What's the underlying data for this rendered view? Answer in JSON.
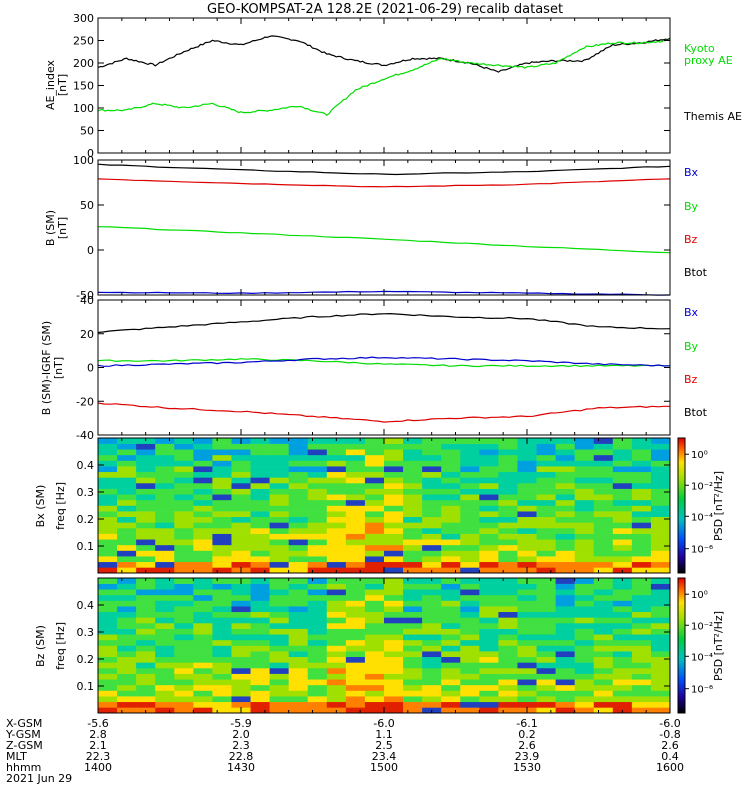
{
  "title": "GEO-KOMPSAT-2A 128.2E (2021-06-29) recalib dataset",
  "colors": {
    "black": "#000000",
    "green": "#00dd00",
    "red": "#dd0000",
    "blue": "#0000cc"
  },
  "chart_data": [
    {
      "type": "line",
      "ylabel": [
        "AE_index",
        "[nT]"
      ],
      "ylim": [
        0,
        300
      ],
      "yticks": [
        "0",
        "50",
        "100",
        "150",
        "200",
        "250",
        "300"
      ],
      "x": [
        1400,
        1406,
        1412,
        1418,
        1424,
        1430,
        1436,
        1442,
        1448,
        1454,
        1500,
        1506,
        1512,
        1518,
        1524,
        1530,
        1536,
        1542,
        1548,
        1554,
        1600
      ],
      "series": [
        {
          "name": "Themis AE",
          "color": "#000000",
          "values": [
            190,
            210,
            195,
            225,
            250,
            240,
            260,
            250,
            220,
            205,
            195,
            210,
            210,
            200,
            180,
            200,
            205,
            205,
            240,
            245,
            255
          ]
        },
        {
          "name": "Kyoto proxy AE",
          "color": "#00dd00",
          "values": [
            95,
            95,
            110,
            100,
            110,
            90,
            95,
            105,
            85,
            140,
            165,
            185,
            210,
            200,
            195,
            190,
            200,
            235,
            245,
            245,
            250
          ]
        }
      ],
      "legend": [
        {
          "text": "Kyoto",
          "color": "#00dd00"
        },
        {
          "text": "proxy AE",
          "color": "#00dd00"
        },
        {
          "text": "Themis AE",
          "color": "#000000"
        }
      ]
    },
    {
      "type": "line",
      "ylabel": [
        "B (SM)",
        "[nT]"
      ],
      "ylim": [
        -50,
        100
      ],
      "yticks": [
        "-50",
        "0",
        "50",
        "100"
      ],
      "x": [
        1400,
        1430,
        1500,
        1530,
        1600
      ],
      "series": [
        {
          "name": "Btot",
          "color": "#000000",
          "values": [
            95,
            89,
            84,
            87,
            93
          ]
        },
        {
          "name": "Bz",
          "color": "#dd0000",
          "values": [
            79,
            74,
            70,
            73,
            79
          ]
        },
        {
          "name": "By",
          "color": "#00dd00",
          "values": [
            26,
            19,
            12,
            4,
            -3
          ]
        },
        {
          "name": "Bx",
          "color": "#0000cc",
          "values": [
            -47,
            -48,
            -46,
            -48,
            -50
          ]
        }
      ],
      "legend": [
        {
          "text": "Bx",
          "color": "#0000cc"
        },
        {
          "text": "By",
          "color": "#00dd00"
        },
        {
          "text": "Bz",
          "color": "#dd0000"
        },
        {
          "text": "Btot",
          "color": "#000000"
        }
      ]
    },
    {
      "type": "line",
      "ylabel": [
        "B (SM)-IGRF (SM)",
        "[nT]"
      ],
      "ylim": [
        -40,
        40
      ],
      "yticks": [
        "-40",
        "-20",
        "0",
        "20",
        "40"
      ],
      "x": [
        1400,
        1415,
        1430,
        1445,
        1500,
        1515,
        1530,
        1545,
        1600
      ],
      "series": [
        {
          "name": "Btot",
          "color": "#000000",
          "values": [
            21,
            24,
            27,
            30,
            32,
            30,
            29,
            24,
            23
          ]
        },
        {
          "name": "By",
          "color": "#00dd00",
          "values": [
            4,
            4,
            5,
            4,
            2,
            1,
            1,
            1,
            1
          ]
        },
        {
          "name": "Bx",
          "color": "#0000cc",
          "values": [
            1,
            2,
            3,
            5,
            6,
            5,
            4,
            2,
            1
          ]
        },
        {
          "name": "Bz",
          "color": "#dd0000",
          "values": [
            -21,
            -24,
            -26,
            -29,
            -32,
            -30,
            -29,
            -24,
            -23
          ]
        }
      ],
      "legend": [
        {
          "text": "Bx",
          "color": "#0000cc"
        },
        {
          "text": "By",
          "color": "#00dd00"
        },
        {
          "text": "Bz",
          "color": "#dd0000"
        },
        {
          "text": "Btot",
          "color": "#000000"
        }
      ]
    },
    {
      "type": "heatmap",
      "ylabel": [
        "Bx (SM)",
        "freq [Hz]"
      ],
      "ylim": [
        0,
        0.5
      ],
      "yticks": [
        "0.1",
        "0.2",
        "0.3",
        "0.4"
      ],
      "colorbar": {
        "label": "PSD [nT²/Hz]",
        "ticks": [
          "10⁰",
          "10⁻²",
          "10⁻⁴",
          "10⁻⁶"
        ]
      },
      "columns": 30,
      "rows": 24
    },
    {
      "type": "heatmap",
      "ylabel": [
        "Bz (SM)",
        "freq [Hz]"
      ],
      "ylim": [
        0,
        0.5
      ],
      "yticks": [
        "0.1",
        "0.2",
        "0.3",
        "0.4"
      ],
      "colorbar": {
        "label": "PSD [nT²/Hz]",
        "ticks": [
          "10⁰",
          "10⁻²",
          "10⁻⁴",
          "10⁻⁶"
        ]
      },
      "columns": 30,
      "rows": 24
    }
  ],
  "xaxis_table": {
    "labels": [
      "X-GSM",
      "Y-GSM",
      "Z-GSM",
      "MLT",
      "hhmm",
      "2021 Jun 29"
    ],
    "columns": [
      [
        "-5.6",
        "2.8",
        "2.1",
        "22.3",
        "1400"
      ],
      [
        "-5.9",
        "2.0",
        "2.3",
        "22.8",
        "1430"
      ],
      [
        "-6.0",
        "1.1",
        "2.5",
        "23.4",
        "1500"
      ],
      [
        "-6.1",
        "0.2",
        "2.6",
        "23.9",
        "1530"
      ],
      [
        "-6.0",
        "-0.8",
        "2.6",
        "0.4",
        "1600"
      ]
    ]
  }
}
